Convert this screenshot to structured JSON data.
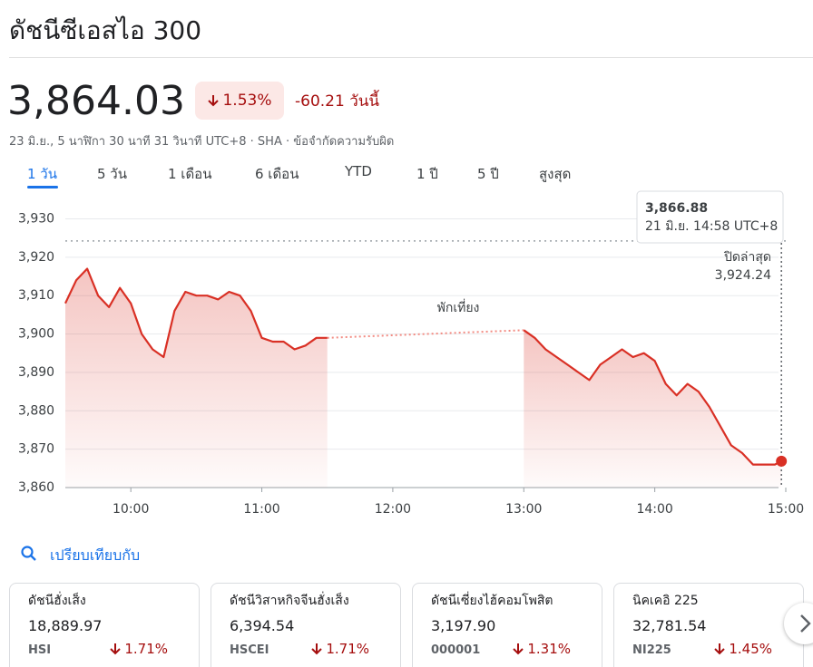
{
  "header": {
    "title": "ดัชนีซีเอสไอ 300"
  },
  "quote": {
    "price": "3,864.03",
    "change_percent": "1.53%",
    "change": "-60.21 วันนี้",
    "meta": "23 มิ.ย., 5 นาฬิกา 30 นาที 31 วินาที UTC+8 · SHA · ข้อจำกัดความรับผิด"
  },
  "tabs": [
    "1 วัน",
    "5 วัน",
    "1 เดือน",
    "6 เดือน",
    "YTD",
    "1 ปี",
    "5 ปี",
    "สูงสุด"
  ],
  "chart_data": {
    "type": "line",
    "color": "#d93025",
    "grid": true,
    "series": [
      {
        "x": [
          570,
          575,
          580,
          585,
          590,
          595,
          600,
          605,
          610,
          615,
          620,
          625,
          630,
          635,
          640,
          645,
          650,
          655,
          660,
          665,
          670,
          675,
          680,
          685,
          690
        ],
        "values": [
          3908,
          3914,
          3917,
          3910,
          3907,
          3912,
          3908,
          3900,
          3896,
          3894,
          3906,
          3911,
          3910,
          3910,
          3909,
          3911,
          3910,
          3906,
          3899,
          3898,
          3898,
          3896,
          3897,
          3899,
          3899
        ]
      },
      {
        "x": [
          780,
          785,
          790,
          795,
          800,
          805,
          810,
          815,
          820,
          825,
          830,
          835,
          840,
          845,
          850,
          855,
          860,
          865,
          870,
          875,
          880,
          885,
          890,
          895,
          898
        ],
        "values": [
          3901,
          3899,
          3896,
          3894,
          3892,
          3890,
          3888,
          3892,
          3894,
          3896,
          3894,
          3895,
          3893,
          3887,
          3884,
          3887,
          3885,
          3881,
          3876,
          3871,
          3869,
          3866,
          3866,
          3866,
          3866.88
        ]
      }
    ],
    "xlim": [
      570,
      900
    ],
    "xticks": [
      {
        "value": 600,
        "label": "10:00"
      },
      {
        "value": 660,
        "label": "11:00"
      },
      {
        "value": 720,
        "label": "12:00"
      },
      {
        "value": 780,
        "label": "13:00"
      },
      {
        "value": 840,
        "label": "14:00"
      },
      {
        "value": 900,
        "label": "15:00"
      }
    ],
    "ylim": [
      3860,
      3932
    ],
    "yticks": [
      {
        "value": 3860,
        "label": "3,860"
      },
      {
        "value": 3870,
        "label": "3,870"
      },
      {
        "value": 3880,
        "label": "3,880"
      },
      {
        "value": 3890,
        "label": "3,890"
      },
      {
        "value": 3900,
        "label": "3,900"
      },
      {
        "value": 3910,
        "label": "3,910"
      },
      {
        "value": 3920,
        "label": "3,920"
      },
      {
        "value": 3930,
        "label": "3,930"
      }
    ],
    "previous_close": {
      "label": "ปิดล่าสุด",
      "value": 3924.24,
      "value_label": "3,924.24"
    },
    "annotation": "พักเที่ยง",
    "tooltip": {
      "value": "3,866.88",
      "time": "21 มิ.ย. 14:58 UTC+8"
    }
  },
  "compare": {
    "title": "เปรียบเทียบกับ",
    "cards": [
      {
        "name": "ดัชนีฮั่งเส็ง",
        "price": "18,889.97",
        "symbol": "HSI",
        "change": "1.71%"
      },
      {
        "name": "ดัชนีวิสาหกิจจีนฮั่งเส็ง",
        "price": "6,394.54",
        "symbol": "HSCEI",
        "change": "1.71%"
      },
      {
        "name": "ดัชนีเซี่ยงไฮ้คอมโพสิต",
        "price": "3,197.90",
        "symbol": "000001",
        "change": "1.31%"
      },
      {
        "name": "นิคเคอิ 225",
        "price": "32,781.54",
        "symbol": "NI225",
        "change": "1.45%"
      }
    ]
  }
}
